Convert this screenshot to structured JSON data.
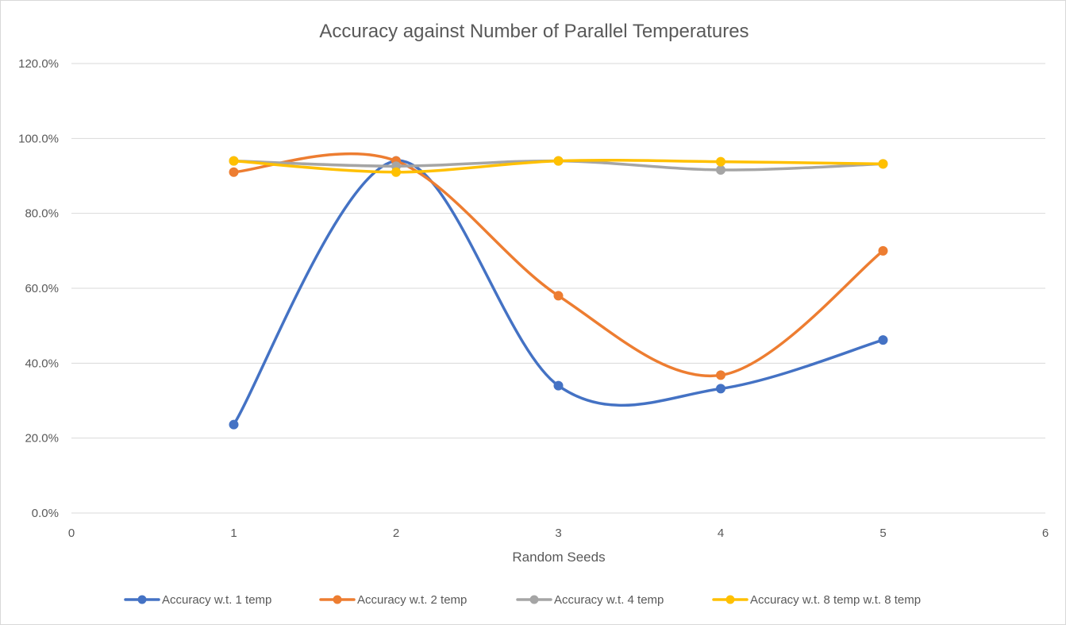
{
  "chart_data": {
    "type": "line",
    "smooth": true,
    "title": "Accuracy against Number of Parallel Temperatures",
    "xlabel": "Random Seeds",
    "ylabel": "",
    "xlim": [
      0,
      6
    ],
    "ylim": [
      0,
      1.2
    ],
    "x_ticks": [
      "0",
      "1",
      "2",
      "3",
      "4",
      "5",
      "6"
    ],
    "y_ticks": [
      "0.0%",
      "20.0%",
      "40.0%",
      "60.0%",
      "80.0%",
      "100.0%",
      "120.0%"
    ],
    "grid": "horizontal",
    "legend_position": "bottom",
    "x": [
      1,
      2,
      3,
      4,
      5
    ],
    "series": [
      {
        "name": "Accuracy w.t. 1 temp",
        "color": "#4472c4",
        "values": [
          0.236,
          0.94,
          0.34,
          0.332,
          0.462
        ]
      },
      {
        "name": "Accuracy w.t. 2 temp",
        "color": "#ed7d31",
        "values": [
          0.91,
          0.94,
          0.58,
          0.368,
          0.7
        ]
      },
      {
        "name": "Accuracy w.t. 4 temp",
        "color": "#a5a5a5",
        "values": [
          0.94,
          0.926,
          0.94,
          0.916,
          0.932
        ]
      },
      {
        "name": "Accuracy w.t. 8 temp w.t. 8 temp",
        "color": "#ffc000",
        "values": [
          0.94,
          0.91,
          0.94,
          0.938,
          0.932
        ]
      }
    ]
  }
}
